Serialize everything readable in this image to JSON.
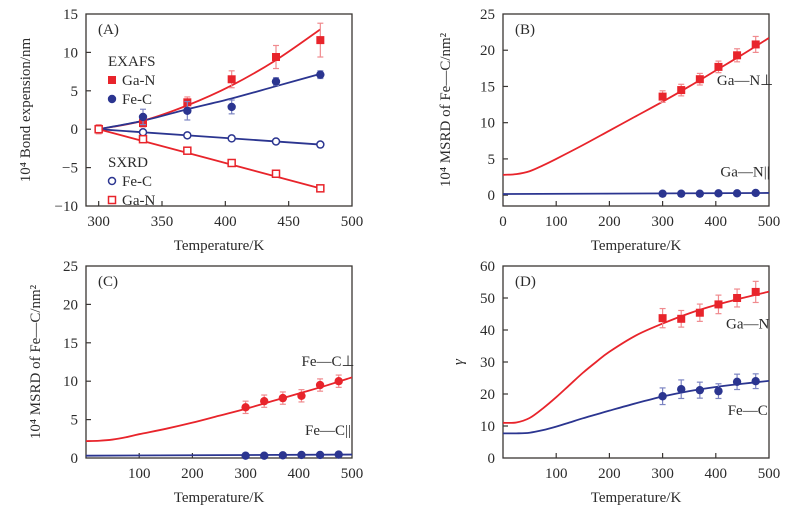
{
  "colors": {
    "red": "#e8242b",
    "blue": "#2b3590",
    "axis": "#3a3633",
    "errRed": "#f08a8e",
    "errBlue": "#7c84c2"
  },
  "chart_data": [
    {
      "id": "A",
      "type": "scatter",
      "panel_label": "(A)",
      "title": "",
      "xlabel": "Temperature/K",
      "ylabel": "10⁴ Bond expension/nm",
      "xlim": [
        290,
        500
      ],
      "ylim": [
        -10,
        15
      ],
      "xticks": [
        300,
        350,
        400,
        450,
        500
      ],
      "yticks": [
        -10,
        -5,
        0,
        5,
        10,
        15
      ],
      "legend": {
        "placement": "left",
        "groups": [
          {
            "title": "EXAFS",
            "entries": [
              {
                "name": "Ga-N",
                "marker": "square-filled",
                "color": "red"
              },
              {
                "name": "Fe-C",
                "marker": "circle-filled",
                "color": "blue"
              }
            ]
          },
          {
            "title": "SXRD",
            "entries": [
              {
                "name": "Fe-C",
                "marker": "circle-open",
                "color": "blue"
              },
              {
                "name": "Ga-N",
                "marker": "square-open",
                "color": "red"
              }
            ]
          }
        ]
      },
      "series": [
        {
          "name": "EXAFS Ga-N",
          "marker": "square-filled",
          "color": "red",
          "x": [
            300,
            335,
            370,
            405,
            440,
            475
          ],
          "y": [
            0,
            0.8,
            3.5,
            6.5,
            9.4,
            11.6
          ],
          "err": [
            0.6,
            0.5,
            0.7,
            1.1,
            1.5,
            2.2
          ]
        },
        {
          "name": "EXAFS Fe-C",
          "marker": "circle-filled",
          "color": "blue",
          "x": [
            300,
            335,
            370,
            405,
            440,
            475
          ],
          "y": [
            0,
            1.6,
            2.4,
            2.9,
            6.2,
            7.1
          ],
          "err": [
            0.3,
            1.0,
            1.2,
            0.9,
            0.5,
            0.5
          ]
        },
        {
          "name": "SXRD Fe-C",
          "marker": "circle-open",
          "color": "blue",
          "x": [
            300,
            335,
            370,
            405,
            440,
            475
          ],
          "y": [
            0,
            -0.4,
            -0.8,
            -1.2,
            -1.6,
            -2.0
          ],
          "err": []
        },
        {
          "name": "SXRD Ga-N",
          "marker": "square-open",
          "color": "red",
          "x": [
            300,
            335,
            370,
            405,
            440,
            475
          ],
          "y": [
            0,
            -1.3,
            -2.8,
            -4.4,
            -5.8,
            -7.7
          ],
          "err": []
        }
      ],
      "fits": [
        {
          "name": "EXAFS Ga-N fit",
          "color": "red",
          "x": [
            300,
            335,
            370,
            405,
            440,
            475
          ],
          "y": [
            0,
            1.1,
            3.1,
            5.7,
            9.0,
            13.0
          ]
        },
        {
          "name": "EXAFS Fe-C fit",
          "color": "blue",
          "x": [
            300,
            335,
            370,
            405,
            440,
            475
          ],
          "y": [
            0,
            1.1,
            2.6,
            4.0,
            5.6,
            7.2
          ]
        },
        {
          "name": "SXRD Fe-C fit",
          "color": "blue",
          "x": [
            300,
            475
          ],
          "y": [
            0,
            -2.0
          ]
        },
        {
          "name": "SXRD Ga-N fit",
          "color": "red",
          "x": [
            300,
            475
          ],
          "y": [
            0,
            -7.7
          ]
        }
      ],
      "annotations": []
    },
    {
      "id": "B",
      "type": "scatter",
      "panel_label": "(B)",
      "title": "",
      "xlabel": "Temperature/K",
      "ylabel": "10⁴ MSRD of Fe—C/nm²",
      "xlim": [
        0,
        500
      ],
      "ylim": [
        -1.5,
        25
      ],
      "xticks": [
        0,
        100,
        200,
        300,
        400,
        500
      ],
      "yticks": [
        0,
        5,
        10,
        15,
        20,
        25
      ],
      "series": [
        {
          "name": "Ga—N⊥",
          "marker": "square-filled",
          "color": "red",
          "x": [
            300,
            335,
            370,
            405,
            440,
            475
          ],
          "y": [
            13.6,
            14.5,
            16.0,
            17.7,
            19.3,
            20.8
          ],
          "err": [
            0.8,
            0.8,
            0.8,
            0.8,
            0.9,
            1.1
          ]
        },
        {
          "name": "Ga—N||",
          "marker": "circle-filled",
          "color": "blue",
          "x": [
            300,
            335,
            370,
            405,
            440,
            475
          ],
          "y": [
            0.2,
            0.2,
            0.2,
            0.25,
            0.25,
            0.3
          ],
          "err": []
        }
      ],
      "fits": [
        {
          "name": "Ga—N⊥ fit",
          "color": "red",
          "x": [
            0,
            25,
            50,
            75,
            100,
            150,
            200,
            250,
            300,
            350,
            400,
            450,
            500
          ],
          "y": [
            2.8,
            2.9,
            3.3,
            4.1,
            5.0,
            6.9,
            8.9,
            10.9,
            12.9,
            15.0,
            17.2,
            19.4,
            21.7
          ]
        },
        {
          "name": "Ga—N|| fit",
          "color": "blue",
          "x": [
            0,
            500
          ],
          "y": [
            0.15,
            0.3
          ]
        }
      ],
      "annotations": [
        {
          "text": "Ga—N⊥",
          "x": 455,
          "y": 15.2
        },
        {
          "text": "Ga—N||",
          "x": 455,
          "y": 2.6
        }
      ]
    },
    {
      "id": "C",
      "type": "scatter",
      "panel_label": "(C)",
      "title": "",
      "xlabel": "Temperature/K",
      "ylabel": "10⁴ MSRD of Fe—C/nm²",
      "xlim": [
        0,
        500
      ],
      "ylim": [
        0,
        25
      ],
      "xticks": [
        100,
        200,
        300,
        400,
        500
      ],
      "yticks": [
        0,
        5,
        10,
        15,
        20,
        25
      ],
      "series": [
        {
          "name": "Fe—C⊥",
          "marker": "circle-filled",
          "color": "red",
          "x": [
            300,
            335,
            370,
            405,
            440,
            475
          ],
          "y": [
            6.6,
            7.4,
            7.8,
            8.1,
            9.5,
            10.0
          ],
          "err": [
            0.8,
            0.8,
            0.8,
            0.8,
            0.8,
            0.8
          ]
        },
        {
          "name": "Fe—C||",
          "marker": "circle-filled",
          "color": "blue",
          "x": [
            300,
            335,
            370,
            405,
            440,
            475
          ],
          "y": [
            0.3,
            0.3,
            0.35,
            0.4,
            0.4,
            0.45
          ],
          "err": [
            0.3,
            0,
            0,
            0.3,
            0,
            0
          ]
        }
      ],
      "fits": [
        {
          "name": "Fe—C⊥ fit",
          "color": "red",
          "x": [
            0,
            25,
            50,
            75,
            100,
            150,
            200,
            250,
            300,
            350,
            400,
            450,
            500
          ],
          "y": [
            2.2,
            2.25,
            2.4,
            2.7,
            3.1,
            3.8,
            4.6,
            5.5,
            6.4,
            7.4,
            8.4,
            9.4,
            10.5
          ]
        },
        {
          "name": "Fe—C|| fit",
          "color": "blue",
          "x": [
            0,
            500
          ],
          "y": [
            0.3,
            0.45
          ]
        }
      ],
      "annotations": [
        {
          "text": "Fe—C⊥",
          "x": 455,
          "y": 12.0
        },
        {
          "text": "Fe—C||",
          "x": 455,
          "y": 3.0
        }
      ]
    },
    {
      "id": "D",
      "type": "scatter",
      "panel_label": "(D)",
      "title": "",
      "xlabel": "Temperature/K",
      "ylabel": "γ",
      "xlim": [
        0,
        500
      ],
      "ylim": [
        0,
        60
      ],
      "xticks": [
        100,
        200,
        300,
        400,
        500
      ],
      "yticks": [
        0,
        10,
        20,
        30,
        40,
        50,
        60
      ],
      "series": [
        {
          "name": "Ga—N",
          "marker": "square-filled",
          "color": "red",
          "x": [
            300,
            335,
            370,
            405,
            440,
            475
          ],
          "y": [
            43.7,
            43.5,
            45.4,
            48.0,
            50.0,
            51.9
          ],
          "err": [
            3.0,
            2.6,
            2.7,
            2.9,
            2.8,
            3.3
          ]
        },
        {
          "name": "Fe—C",
          "marker": "circle-filled",
          "color": "blue",
          "x": [
            300,
            335,
            370,
            405,
            440,
            475
          ],
          "y": [
            19.3,
            21.5,
            21.2,
            20.9,
            23.8,
            24.0
          ],
          "err": [
            2.6,
            2.9,
            2.5,
            2.3,
            2.4,
            2.3
          ]
        }
      ],
      "fits": [
        {
          "name": "Ga—N fit",
          "color": "red",
          "x": [
            0,
            25,
            50,
            75,
            100,
            125,
            150,
            175,
            200,
            250,
            300,
            350,
            400,
            450,
            500
          ],
          "y": [
            11.0,
            11.1,
            12.5,
            15.5,
            19.0,
            22.8,
            26.6,
            30.0,
            33.2,
            38.3,
            42.0,
            45.2,
            47.8,
            50.0,
            52.0
          ]
        },
        {
          "name": "Fe—C fit",
          "color": "blue",
          "x": [
            0,
            25,
            50,
            75,
            100,
            125,
            150,
            175,
            200,
            250,
            300,
            350,
            400,
            450,
            500
          ],
          "y": [
            7.7,
            7.7,
            7.9,
            8.7,
            9.8,
            11.1,
            12.4,
            13.6,
            14.8,
            17.1,
            19.2,
            20.9,
            22.2,
            23.2,
            24.1
          ]
        }
      ],
      "annotations": [
        {
          "text": "Ga—N",
          "x": 460,
          "y": 40.5
        },
        {
          "text": "Fe—C",
          "x": 460,
          "y": 13.5
        }
      ]
    }
  ]
}
